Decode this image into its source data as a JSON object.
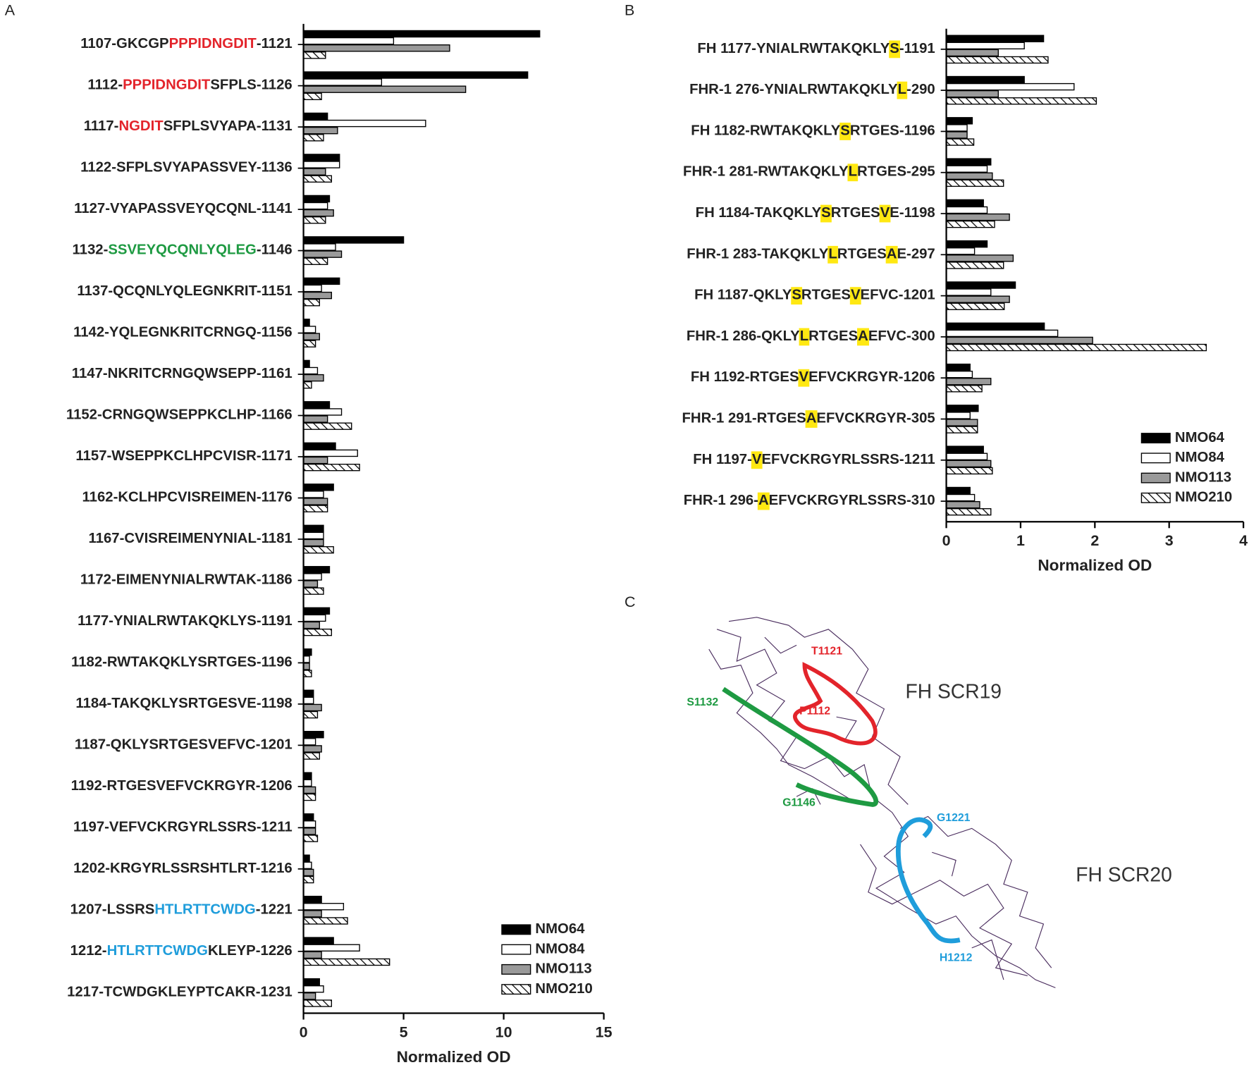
{
  "panel_labels": [
    "A",
    "B",
    "C"
  ],
  "chart_data": [
    {
      "type": "bar",
      "orientation": "horizontal",
      "categories": [
        [
          "1107-GKCGP",
          "PPPIDNGDIT",
          "-1121"
        ],
        [
          "1112-",
          "PPPIDNGDIT",
          "SFPLS-1126"
        ],
        [
          "1117-",
          "NGDIT",
          "SFPLSVYAPA-1131"
        ],
        [
          "1122-SFPLSVYAPASSVEY-1136"
        ],
        [
          "1127-VYAPASSVEYQCQNL-1141"
        ],
        [
          "1132-",
          "SSVEYQCQNLYQLEG",
          "-1146"
        ],
        [
          "1137-QCQNLYQLEGNKRIT-1151"
        ],
        [
          "1142-YQLEGNKRITCRNGQ-1156"
        ],
        [
          "1147-NKRITCRNGQWSEPP-1161"
        ],
        [
          "1152-CRNGQWSEPPKCLHP-1166"
        ],
        [
          "1157-WSEPPKCLHPCVISR-1171"
        ],
        [
          "1162-KCLHPCVISREIMEN-1176"
        ],
        [
          "1167-CVISREIMENYNIAL-1181"
        ],
        [
          "1172-EIMENYNIALRWTAK-1186"
        ],
        [
          "1177-YNIALRWTAKQKLYS-1191"
        ],
        [
          "1182-RWTAKQKLYSRTGES-1196"
        ],
        [
          "1184-TAKQKLYSRTGESVE-1198"
        ],
        [
          "1187-QKLYSRTGESVEFVC-1201"
        ],
        [
          "1192-RTGESVEFVCKRGYR-1206"
        ],
        [
          "1197-VEFVCKRGYRLSSRS-1211"
        ],
        [
          "1202-KRGYRLSSRSHTLRT-1216"
        ],
        [
          "1207-LSSRS",
          "HTLRTTCWDG",
          "-1221"
        ],
        [
          "1212-",
          "HTLRTTCWDG",
          "KLEYP-1226"
        ],
        [
          "1217-TCWDGKLEYPTCAKR-1231"
        ]
      ],
      "highlight_style": "text-color",
      "highlight_color": [
        null,
        null,
        null,
        null,
        null,
        null,
        null,
        null,
        null,
        null,
        null,
        null,
        null,
        null,
        null,
        null,
        null,
        null,
        null,
        null,
        null,
        null,
        null,
        null
      ],
      "highlight_colors": [
        "#e3242b",
        "#e3242b",
        "#e3242b",
        null,
        null,
        "#1e9a42",
        null,
        null,
        null,
        null,
        null,
        null,
        null,
        null,
        null,
        null,
        null,
        null,
        null,
        null,
        null,
        "#1f9ddb",
        "#1f9ddb",
        null
      ],
      "series": [
        {
          "name": "NMO64",
          "color": "#000000",
          "hatch": false,
          "values": [
            11.8,
            11.2,
            1.2,
            1.8,
            1.3,
            5.0,
            1.8,
            0.3,
            0.3,
            1.3,
            1.6,
            1.5,
            1.0,
            1.3,
            1.3,
            0.4,
            0.5,
            1.0,
            0.4,
            0.5,
            0.3,
            0.9,
            1.5,
            0.8
          ]
        },
        {
          "name": "NMO84",
          "color": "#ffffff",
          "hatch": false,
          "values": [
            4.5,
            3.9,
            6.1,
            1.8,
            1.2,
            1.6,
            0.9,
            0.6,
            0.7,
            1.9,
            2.7,
            1.0,
            1.0,
            0.9,
            1.1,
            0.3,
            0.5,
            0.6,
            0.4,
            0.6,
            0.4,
            2.0,
            2.8,
            1.0
          ]
        },
        {
          "name": "NMO113",
          "color": "#9a9a9a",
          "hatch": false,
          "values": [
            7.3,
            8.1,
            1.7,
            1.1,
            1.5,
            1.9,
            1.4,
            0.8,
            1.0,
            1.2,
            1.2,
            1.2,
            1.0,
            0.7,
            0.8,
            0.3,
            0.9,
            0.9,
            0.6,
            0.6,
            0.5,
            0.9,
            0.9,
            0.6
          ]
        },
        {
          "name": "NMO210",
          "color": "#ffffff",
          "hatch": true,
          "values": [
            1.1,
            0.9,
            1.0,
            1.4,
            1.1,
            1.2,
            0.8,
            0.6,
            0.4,
            2.4,
            2.8,
            1.2,
            1.5,
            1.0,
            1.4,
            0.4,
            0.7,
            0.8,
            0.6,
            0.7,
            0.5,
            2.2,
            4.3,
            1.4
          ]
        }
      ],
      "xlim": [
        0,
        15
      ],
      "xticks": [
        0,
        5,
        10,
        15
      ],
      "xlabel": "Normalized OD",
      "legend": "lower right"
    },
    {
      "type": "bar",
      "orientation": "horizontal",
      "categories": [
        [
          "FH 1177-YNIALRWTAKQKLY",
          "S",
          "-1191"
        ],
        [
          "FHR-1 276-YNIALRWTAKQKLY",
          "L",
          "-290"
        ],
        [
          "FH 1182-RWTAKQKLY",
          "S",
          "RTGES-1196"
        ],
        [
          "FHR-1 281-RWTAKQKLY",
          "L",
          "RTGES-295"
        ],
        [
          "FH 1184-TAKQKLY",
          "S",
          "RTGES",
          "V",
          "E-1198"
        ],
        [
          "FHR-1 283-TAKQKLY",
          "L",
          "RTGES",
          "A",
          "E-297"
        ],
        [
          "FH 1187-QKLY",
          "S",
          "RTGES",
          "V",
          "EFVC-1201"
        ],
        [
          "FHR-1 286-QKLY",
          "L",
          "RTGES",
          "A",
          "EFVC-300"
        ],
        [
          "FH 1192-RTGES",
          "V",
          "EFVCKRGYR-1206"
        ],
        [
          "FHR-1 291-RTGES",
          "A",
          "EFVCKRGYR-305"
        ],
        [
          "FH 1197-",
          "V",
          "EFVCKRGYRLSSRS-1211"
        ],
        [
          "FHR-1 296-",
          "A",
          "EFVCKRGYRLSSRS-310"
        ]
      ],
      "highlight_style": "background",
      "highlight_colors": [
        "#ffe812",
        "#ffe812",
        "#ffe812",
        "#ffe812",
        "#ffe812",
        "#ffe812",
        "#ffe812",
        "#ffe812",
        "#ffe812",
        "#ffe812",
        "#ffe812",
        "#ffe812"
      ],
      "series": [
        {
          "name": "NMO64",
          "color": "#000000",
          "hatch": false,
          "values": [
            1.31,
            1.05,
            0.35,
            0.6,
            0.5,
            0.55,
            0.93,
            1.32,
            0.32,
            0.43,
            0.5,
            0.32
          ]
        },
        {
          "name": "NMO84",
          "color": "#ffffff",
          "hatch": false,
          "values": [
            1.05,
            1.72,
            0.28,
            0.55,
            0.55,
            0.38,
            0.6,
            1.5,
            0.35,
            0.32,
            0.55,
            0.38
          ]
        },
        {
          "name": "NMO113",
          "color": "#9a9a9a",
          "hatch": false,
          "values": [
            0.7,
            0.7,
            0.28,
            0.62,
            0.85,
            0.9,
            0.85,
            1.97,
            0.6,
            0.42,
            0.6,
            0.45
          ]
        },
        {
          "name": "NMO210",
          "color": "#ffffff",
          "hatch": true,
          "values": [
            1.37,
            2.02,
            0.37,
            0.77,
            0.65,
            0.77,
            0.78,
            3.5,
            0.48,
            0.42,
            0.62,
            0.6
          ]
        }
      ],
      "xlim": [
        0,
        4
      ],
      "xticks": [
        0,
        1,
        2,
        3,
        4
      ],
      "xlabel": "Normalized OD",
      "legend": "lower right"
    }
  ],
  "panel_c": {
    "residues": [
      "T1121",
      "P1112",
      "S1132",
      "G1146",
      "G1221",
      "H1212"
    ],
    "residue_colors": [
      "#e3242b",
      "#e3242b",
      "#1e9a42",
      "#1e9a42",
      "#1f9ddb",
      "#1f9ddb"
    ],
    "domains": [
      "FH SCR19",
      "FH SCR20"
    ]
  }
}
